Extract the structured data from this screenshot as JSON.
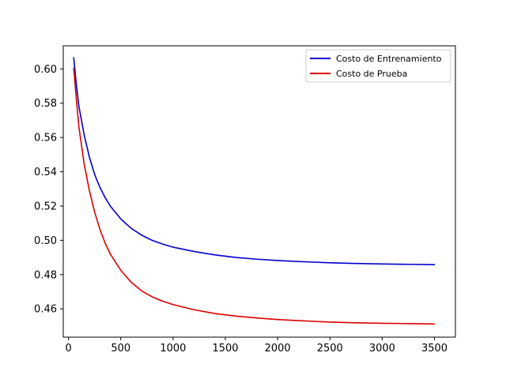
{
  "chart_data": {
    "type": "line",
    "title": "",
    "xlabel": "",
    "ylabel": "",
    "xlim": [
      -50,
      3700
    ],
    "ylim": [
      0.4435,
      0.6135
    ],
    "xticks": [
      0,
      500,
      1000,
      1500,
      2000,
      2500,
      3000,
      3500
    ],
    "yticks": [
      0.46,
      0.48,
      0.5,
      0.52,
      0.54,
      0.56,
      0.58,
      0.6
    ],
    "ytick_labels": [
      "0.46",
      "0.48",
      "0.50",
      "0.52",
      "0.54",
      "0.56",
      "0.58",
      "0.60"
    ],
    "grid": false,
    "legend_position": "top-right",
    "series": [
      {
        "name": "Costo de Entrenamiento",
        "color": "#0000cc",
        "x": [
          50,
          75,
          100,
          150,
          200,
          250,
          300,
          350,
          400,
          500,
          600,
          700,
          800,
          900,
          1000,
          1200,
          1400,
          1600,
          1800,
          2000,
          2250,
          2500,
          2750,
          3000,
          3250,
          3500
        ],
        "y": [
          0.6065,
          0.591,
          0.578,
          0.5615,
          0.5485,
          0.5385,
          0.531,
          0.525,
          0.52,
          0.5125,
          0.507,
          0.503,
          0.5,
          0.4978,
          0.496,
          0.4935,
          0.4915,
          0.49,
          0.489,
          0.4882,
          0.4875,
          0.4869,
          0.4865,
          0.4862,
          0.486,
          0.4858
        ]
      },
      {
        "name": "Costo de Prueba",
        "color": "#dd0000",
        "x": [
          50,
          75,
          100,
          150,
          200,
          250,
          300,
          350,
          400,
          500,
          600,
          700,
          800,
          900,
          1000,
          1200,
          1400,
          1600,
          1800,
          2000,
          2250,
          2500,
          2750,
          3000,
          3250,
          3500
        ],
        "y": [
          0.6005,
          0.5825,
          0.566,
          0.5445,
          0.529,
          0.5165,
          0.5065,
          0.4985,
          0.492,
          0.4825,
          0.4755,
          0.4705,
          0.467,
          0.4645,
          0.4625,
          0.4595,
          0.4573,
          0.4558,
          0.4547,
          0.4538,
          0.453,
          0.4523,
          0.4519,
          0.4516,
          0.4514,
          0.4512
        ]
      }
    ]
  }
}
